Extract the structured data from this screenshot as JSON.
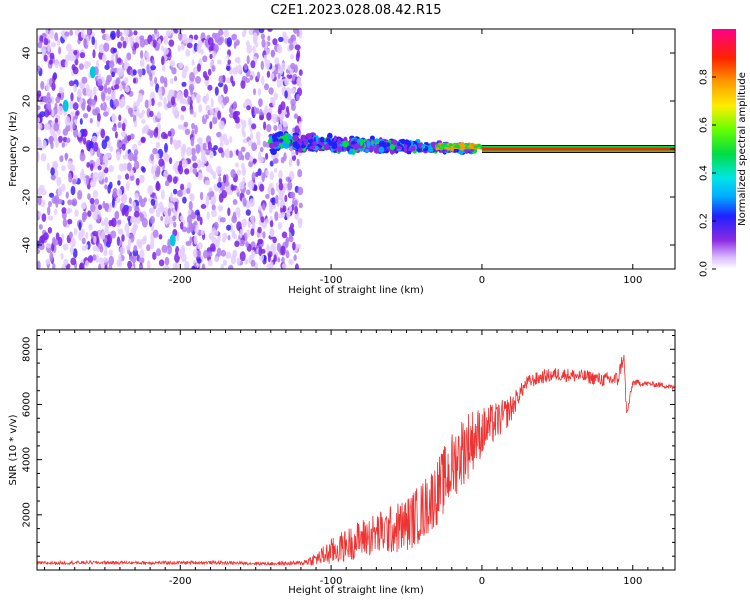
{
  "chart_data": [
    {
      "type": "heatmap",
      "title": "C2E1.2023.028.08.42.R15",
      "xlabel": "Height of straight line (km)",
      "ylabel": "Frequency (Hz)",
      "xlim": [
        -295,
        128
      ],
      "ylim": [
        -50,
        50
      ],
      "x_ticks": [
        -200,
        -100,
        0,
        100
      ],
      "x_tick_labels": [
        "-200",
        "-100",
        "0",
        "100"
      ],
      "y_ticks": [
        -40,
        -20,
        0,
        20,
        40
      ],
      "y_tick_labels": [
        "-40",
        "-20",
        "0",
        "20",
        "40"
      ],
      "colorbar": {
        "label": "Normalized spectral amplitude",
        "range": [
          0,
          1
        ],
        "ticks": [
          0.0,
          0.2,
          0.4,
          0.6,
          0.8
        ],
        "tick_labels": [
          "0.0",
          "0.2",
          "0.4",
          "0.6",
          "0.8"
        ]
      },
      "features": [
        {
          "x_range": [
            -295,
            -120
          ],
          "freq_range": [
            -50,
            50
          ],
          "amplitude": 0.05,
          "note_kind": "scattered noise"
        },
        {
          "x_range": [
            -140,
            -5
          ],
          "freq_center": 3,
          "freq_spread": 5,
          "amplitude": 0.25
        },
        {
          "x_range": [
            -30,
            0
          ],
          "freq_center": 1,
          "freq_spread": 1.5,
          "amplitude": 0.7
        },
        {
          "x_range": [
            0,
            128
          ],
          "freq_center": 0,
          "freq_spread": 0.5,
          "amplitude": 0.95
        }
      ]
    },
    {
      "type": "line",
      "xlabel": "Height of straight line (km)",
      "ylabel": "SNR (10 * v/v)",
      "xlim": [
        -295,
        128
      ],
      "ylim": [
        0,
        8700
      ],
      "x_ticks": [
        -200,
        -100,
        0,
        100
      ],
      "x_tick_labels": [
        "-200",
        "-100",
        "0",
        "100"
      ],
      "y_ticks": [
        2000,
        4000,
        6000,
        8000
      ],
      "y_tick_labels": [
        "2000",
        "4000",
        "6000",
        "8000"
      ],
      "series": [
        {
          "color": "#ee3333",
          "x": [
            -295,
            -260,
            -220,
            -180,
            -140,
            -120,
            -110,
            -100,
            -90,
            -80,
            -70,
            -60,
            -50,
            -40,
            -30,
            -20,
            -15,
            -10,
            -5,
            0,
            5,
            10,
            15,
            20,
            25,
            30,
            40,
            50,
            60,
            70,
            80,
            90,
            94,
            96,
            100,
            110,
            120,
            128
          ],
          "values": [
            250,
            270,
            260,
            270,
            230,
            250,
            400,
            650,
            900,
            1150,
            1300,
            1450,
            1650,
            2100,
            2800,
            3700,
            4200,
            4500,
            4800,
            5000,
            5200,
            5400,
            5600,
            5900,
            6400,
            6800,
            7000,
            7100,
            7050,
            7000,
            6900,
            6900,
            7800,
            5600,
            6800,
            6750,
            6700,
            6600
          ],
          "noise_amplitude": [
            60,
            60,
            60,
            60,
            60,
            80,
            250,
            500,
            600,
            700,
            800,
            900,
            1000,
            1100,
            1200,
            1300,
            1300,
            1300,
            1100,
            900,
            800,
            700,
            600,
            500,
            300,
            250,
            250,
            250,
            250,
            250,
            250,
            300,
            300,
            200,
            120,
            100,
            100,
            100
          ]
        }
      ]
    }
  ]
}
